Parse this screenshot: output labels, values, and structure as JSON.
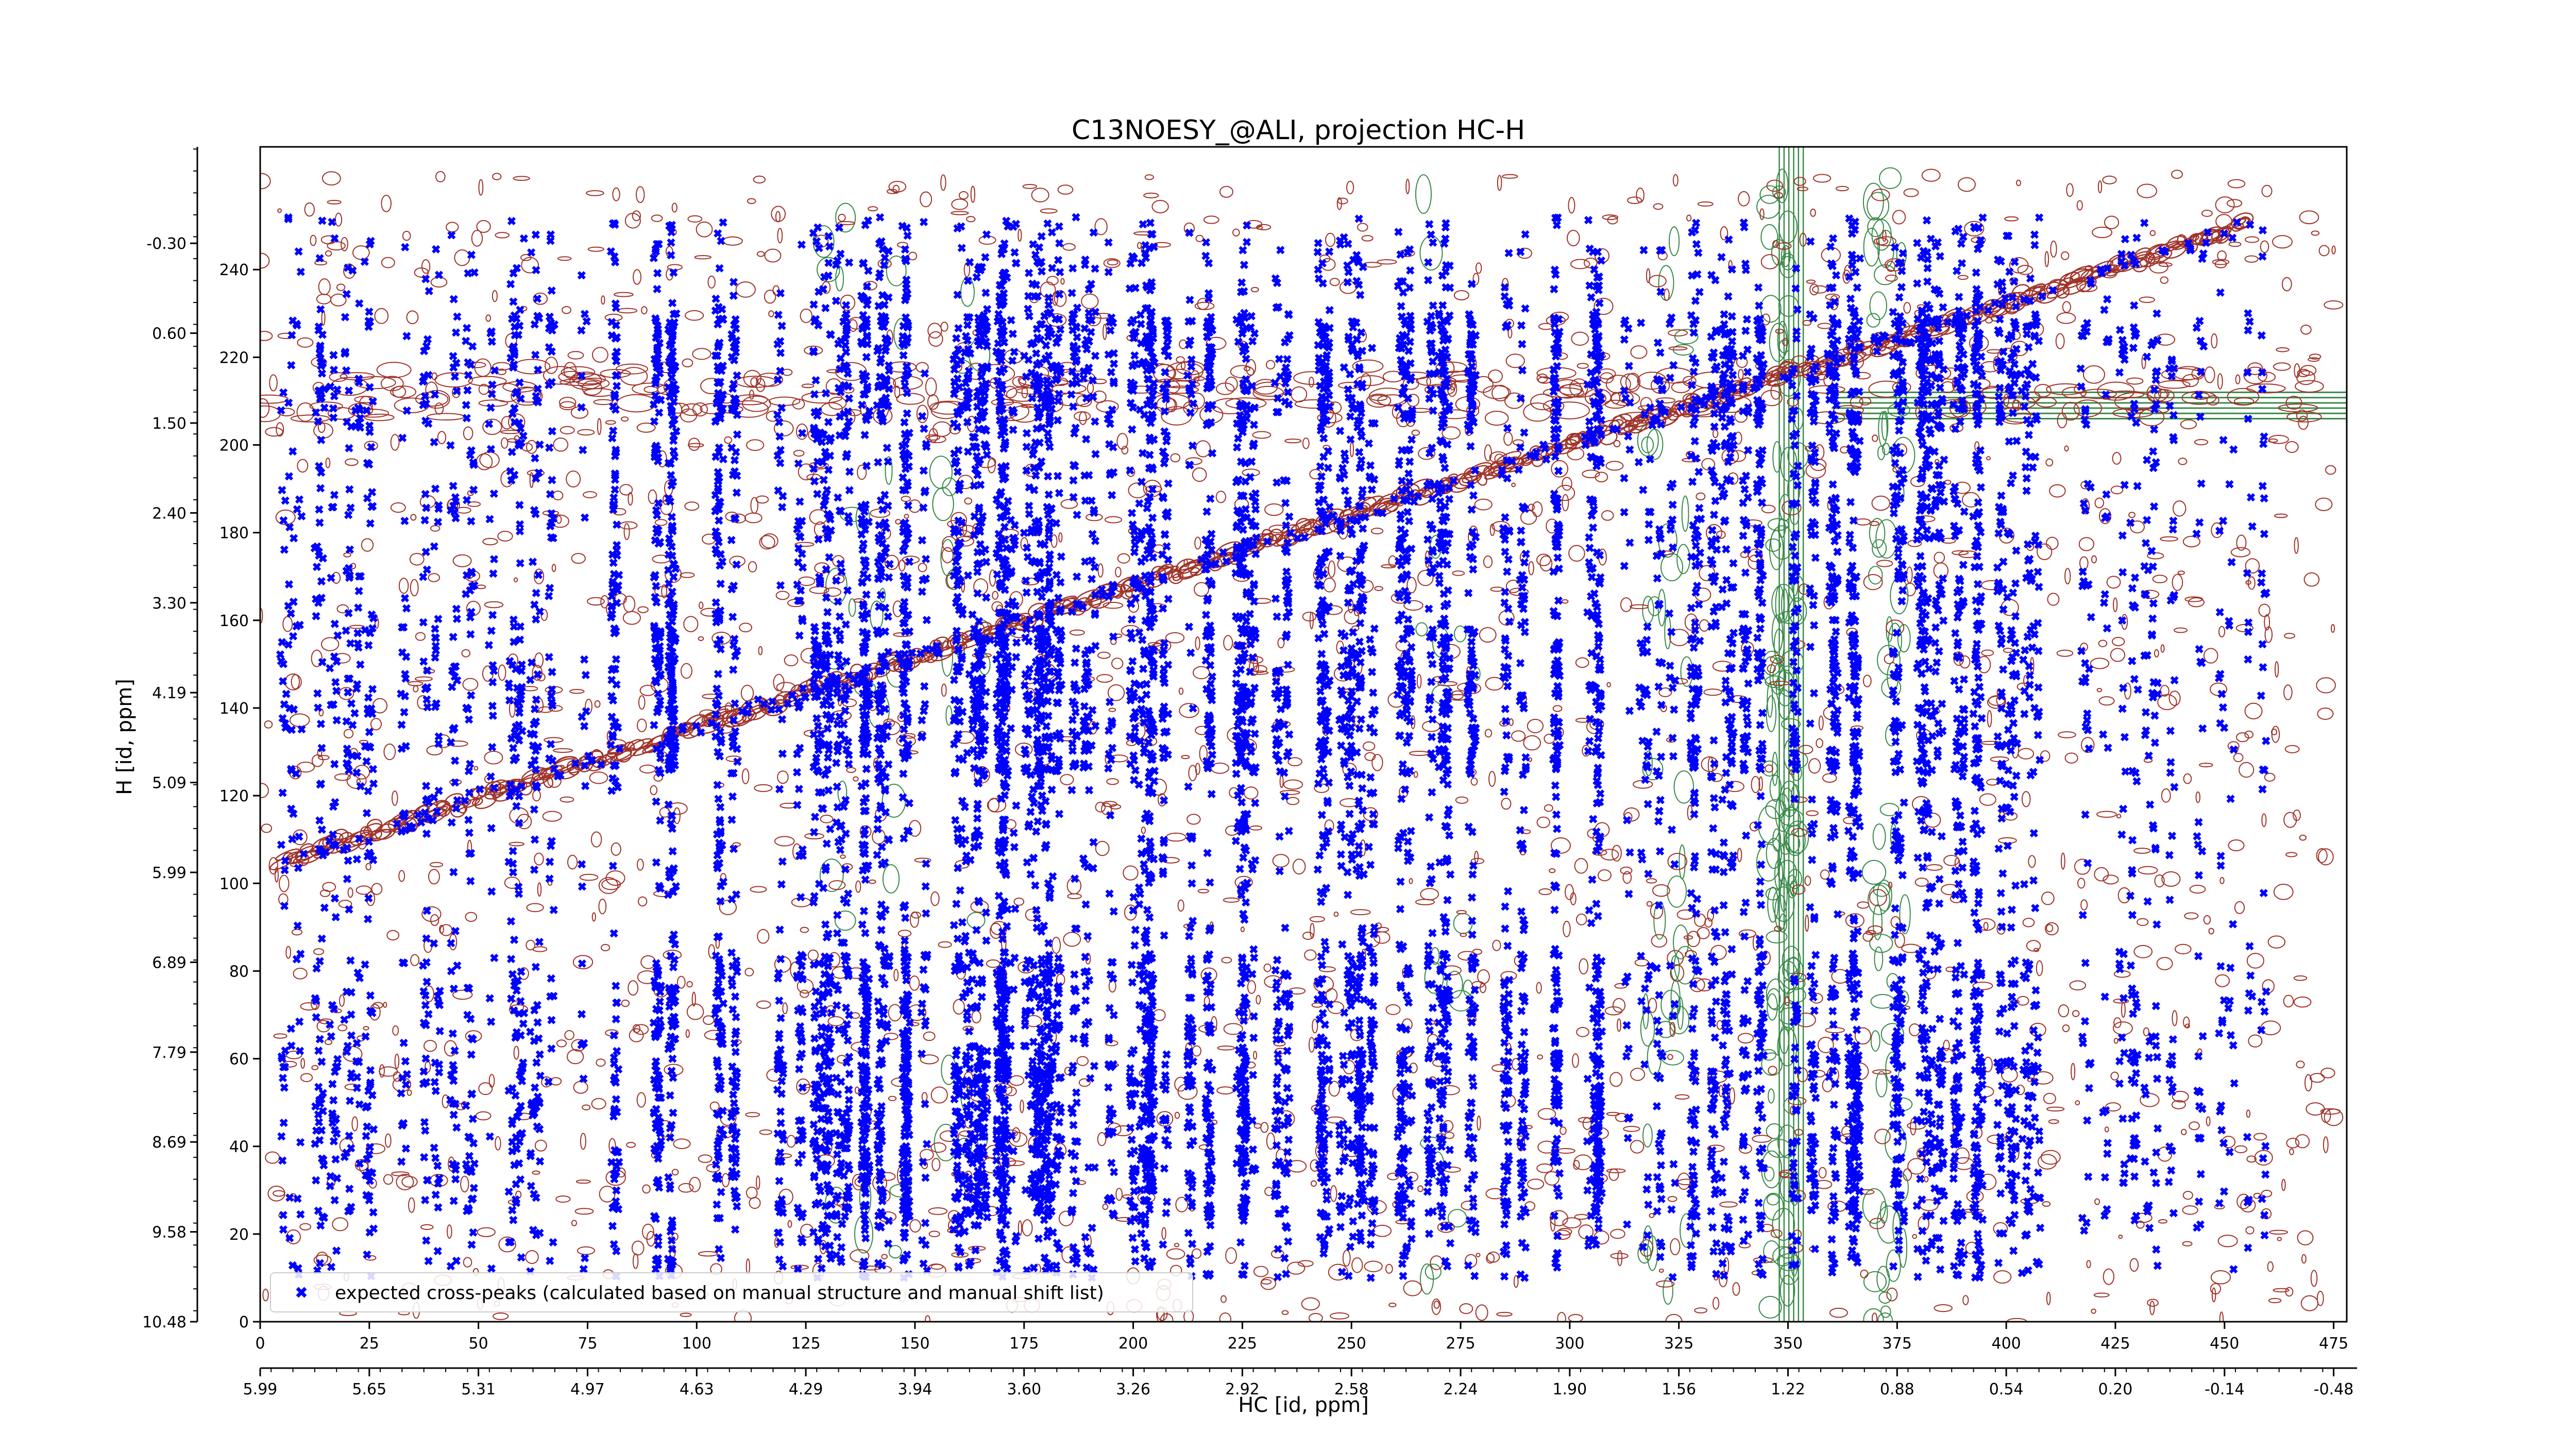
{
  "chart_data": {
    "type": "scatter",
    "title": "C13NOESY_@ALI, projection HC-H",
    "xlabel": "HC [id, ppm]",
    "ylabel": "H [id, ppm]",
    "xlim": [
      0,
      478
    ],
    "ylim": [
      0,
      268
    ],
    "x_ticks": [
      0,
      25,
      50,
      75,
      100,
      125,
      150,
      175,
      200,
      225,
      250,
      275,
      300,
      325,
      350,
      375,
      400,
      425,
      450,
      475
    ],
    "y_ticks": [
      0,
      20,
      40,
      60,
      80,
      100,
      120,
      140,
      160,
      180,
      200,
      220,
      240
    ],
    "x_ppm_ticks": [
      {
        "pos": 0,
        "label": "5.99"
      },
      {
        "pos": 25,
        "label": "5.65"
      },
      {
        "pos": 50,
        "label": "5.31"
      },
      {
        "pos": 75,
        "label": "4.97"
      },
      {
        "pos": 100,
        "label": "4.63"
      },
      {
        "pos": 125,
        "label": "4.29"
      },
      {
        "pos": 150,
        "label": "3.94"
      },
      {
        "pos": 175,
        "label": "3.60"
      },
      {
        "pos": 200,
        "label": "3.26"
      },
      {
        "pos": 225,
        "label": "2.92"
      },
      {
        "pos": 250,
        "label": "2.58"
      },
      {
        "pos": 275,
        "label": "2.24"
      },
      {
        "pos": 300,
        "label": "1.90"
      },
      {
        "pos": 325,
        "label": "1.56"
      },
      {
        "pos": 350,
        "label": "1.22"
      },
      {
        "pos": 375,
        "label": "0.88"
      },
      {
        "pos": 400,
        "label": "0.54"
      },
      {
        "pos": 425,
        "label": "0.20"
      },
      {
        "pos": 450,
        "label": "-0.14"
      },
      {
        "pos": 475,
        "label": "-0.48"
      }
    ],
    "y_ppm_ticks": [
      {
        "pos": 0,
        "label": "10.48"
      },
      {
        "pos": 20.5,
        "label": "9.58"
      },
      {
        "pos": 41,
        "label": "8.69"
      },
      {
        "pos": 61.5,
        "label": "7.79"
      },
      {
        "pos": 82,
        "label": "6.89"
      },
      {
        "pos": 102.5,
        "label": "5.99"
      },
      {
        "pos": 123,
        "label": "5.09"
      },
      {
        "pos": 143.5,
        "label": "4.19"
      },
      {
        "pos": 164,
        "label": "3.30"
      },
      {
        "pos": 184.5,
        "label": "2.40"
      },
      {
        "pos": 205,
        "label": "1.50"
      },
      {
        "pos": 225.5,
        "label": "0.60"
      },
      {
        "pos": 246,
        "label": "-0.30"
      }
    ],
    "diagonal": {
      "from": [
        5,
        105
      ],
      "to": [
        455,
        250
      ]
    },
    "positive_contour_color": "#a0342a",
    "negative_contour_color": "#3a8a4a",
    "series": [
      {
        "name": "expected cross-peaks (calculated based on manual structure and manual shift list)",
        "color": "#0000ff",
        "marker": "x"
      }
    ],
    "legend_position": "lower-left",
    "grid": false
  }
}
